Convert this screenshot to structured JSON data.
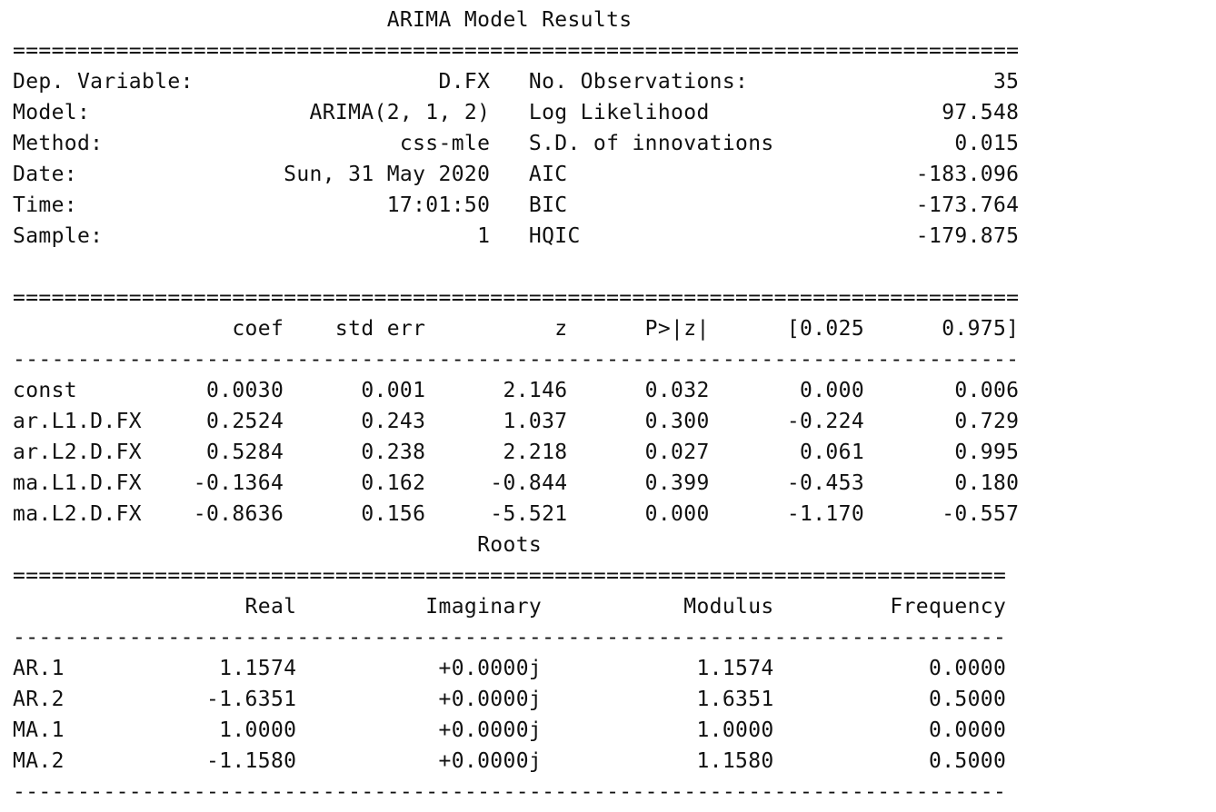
{
  "report": {
    "title": "ARIMA Model Results",
    "lines": [
      "                             ARIMA Model Results                              ",
      "==============================================================================",
      "Dep. Variable:                   D.FX   No. Observations:                   35",
      "Model:                 ARIMA(2, 1, 2)   Log Likelihood                  97.548",
      "Method:                       css-mle   S.D. of innovations              0.015",
      "Date:                Sun, 31 May 2020   AIC                           -183.096",
      "Time:                        17:01:50   BIC                           -173.764",
      "Sample:                             1   HQIC                          -179.875",
      "                                                                              ",
      "==============================================================================",
      "                 coef    std err          z      P>|z|      [0.025      0.975]",
      "------------------------------------------------------------------------------",
      "const          0.0030      0.001      2.146      0.032       0.000       0.006",
      "ar.L1.D.FX     0.2524      0.243      1.037      0.300      -0.224       0.729",
      "ar.L2.D.FX     0.5284      0.238      2.218      0.027       0.061       0.995",
      "ma.L1.D.FX    -0.1364      0.162     -0.844      0.399      -0.453       0.180",
      "ma.L2.D.FX    -0.8636      0.156     -5.521      0.000      -1.170      -0.557",
      "                                    Roots                                    ",
      "=============================================================================",
      "                  Real          Imaginary           Modulus         Frequency",
      "-----------------------------------------------------------------------------",
      "AR.1            1.1574           +0.0000j            1.1574            0.0000",
      "AR.2           -1.6351           +0.0000j            1.6351            0.5000",
      "MA.1            1.0000           +0.0000j            1.0000            0.0000",
      "MA.2           -1.1580           +0.0000j            1.1580            0.5000",
      "-----------------------------------------------------------------------------"
    ]
  }
}
